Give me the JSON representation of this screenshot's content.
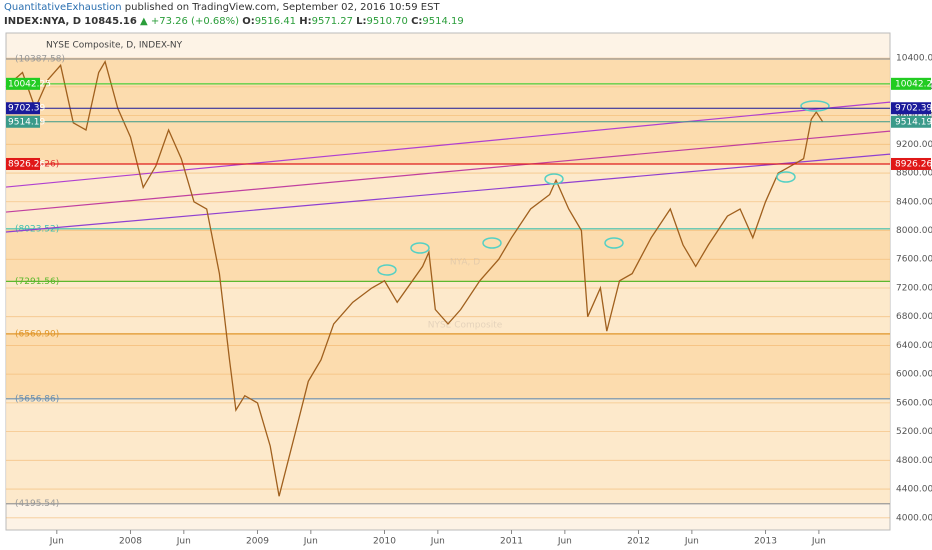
{
  "header": {
    "user": "QuantitativeExhaustion",
    "published": "published on TradingView.com, September 02, 2016 10:59 EST",
    "symbol": "INDEX:NYA, D",
    "last": "10845.16",
    "change": "▲ +73.26 (+0.68%)",
    "open_label": "O:",
    "open": "9516.41",
    "high_label": "H:",
    "high": "9571.27",
    "low_label": "L:",
    "low": "9510.70",
    "close_label": "C:",
    "close": "9514.19"
  },
  "chart_data": {
    "type": "line",
    "title": "NYSE Composite, D, INDEX-NY",
    "watermark": "NYA, D",
    "watermark_sub": "NYSE Composite",
    "color": "#a0601e",
    "x": [
      2007.02,
      2007.15,
      2007.25,
      2007.35,
      2007.45,
      2007.55,
      2007.65,
      2007.75,
      2007.8,
      2007.9,
      2008.0,
      2008.1,
      2008.2,
      2008.3,
      2008.4,
      2008.5,
      2008.6,
      2008.7,
      2008.78,
      2008.83,
      2008.9,
      2009.0,
      2009.1,
      2009.17,
      2009.3,
      2009.4,
      2009.5,
      2009.6,
      2009.75,
      2009.9,
      2010.0,
      2010.1,
      2010.3,
      2010.35,
      2010.4,
      2010.5,
      2010.6,
      2010.75,
      2010.9,
      2011.0,
      2011.15,
      2011.3,
      2011.35,
      2011.45,
      2011.55,
      2011.6,
      2011.7,
      2011.75,
      2011.85,
      2011.95,
      2012.1,
      2012.25,
      2012.35,
      2012.45,
      2012.55,
      2012.7,
      2012.8,
      2012.9,
      2013.0,
      2013.1,
      2013.2,
      2013.3,
      2013.36,
      2013.4,
      2013.45
    ],
    "values": [
      10000,
      10200,
      9700,
      10100,
      10300,
      9500,
      9400,
      10200,
      10350,
      9700,
      9300,
      8600,
      8900,
      9400,
      9000,
      8400,
      8300,
      7400,
      6200,
      5500,
      5700,
      5600,
      5000,
      4300,
      5200,
      5900,
      6200,
      6700,
      7000,
      7200,
      7300,
      7000,
      7500,
      7700,
      6900,
      6700,
      6900,
      7300,
      7600,
      7900,
      8300,
      8500,
      8700,
      8300,
      8000,
      6800,
      7200,
      6600,
      7300,
      7400,
      7900,
      8300,
      7800,
      7500,
      7800,
      8200,
      8300,
      7900,
      8400,
      8800,
      8900,
      9000,
      9550,
      9650,
      9514.19
    ],
    "xlim": [
      2007.02,
      2013.98
    ],
    "ylim": [
      3830,
      10750
    ],
    "xticks": [
      {
        "value": 2007.42,
        "label": "Jun"
      },
      {
        "value": 2008,
        "label": "2008"
      },
      {
        "value": 2008.42,
        "label": "Jun"
      },
      {
        "value": 2009,
        "label": "2009"
      },
      {
        "value": 2009.42,
        "label": "Jun"
      },
      {
        "value": 2010,
        "label": "2010"
      },
      {
        "value": 2010.42,
        "label": "Jun"
      },
      {
        "value": 2011,
        "label": "2011"
      },
      {
        "value": 2011.42,
        "label": "Jun"
      },
      {
        "value": 2012,
        "label": "2012"
      },
      {
        "value": 2012.42,
        "label": "Jun"
      },
      {
        "value": 2013,
        "label": "2013"
      },
      {
        "value": 2013.42,
        "label": "Jun"
      }
    ],
    "yticks": [
      {
        "value": 4000,
        "label": "4000.00"
      },
      {
        "value": 4400,
        "label": "4400.00"
      },
      {
        "value": 4800,
        "label": "4800.00"
      },
      {
        "value": 5200,
        "label": "5200.00"
      },
      {
        "value": 5600,
        "label": "5600.00"
      },
      {
        "value": 6000,
        "label": "6000.00"
      },
      {
        "value": 6400,
        "label": "6400.00"
      },
      {
        "value": 6800,
        "label": "6800.00"
      },
      {
        "value": 7200,
        "label": "7200.00"
      },
      {
        "value": 7600,
        "label": "7600.00"
      },
      {
        "value": 8000,
        "label": "8000.00"
      },
      {
        "value": 8400,
        "label": "8400.00"
      },
      {
        "value": 8800,
        "label": "8800.00"
      },
      {
        "value": 9200,
        "label": "9200.00"
      },
      {
        "value": 9600,
        "label": "9600.00"
      },
      {
        "value": 10000,
        "label": "10000.00"
      },
      {
        "value": 10400,
        "label": "10400.00"
      }
    ],
    "levels": [
      {
        "value": 10387.58,
        "label": "(10387.58)",
        "color": "#999999"
      },
      {
        "value": 8926.26,
        "label": "(8926.26)",
        "color": "#e03030"
      },
      {
        "value": 8023.52,
        "label": "(8023.52)",
        "color": "#3fbfb0"
      },
      {
        "value": 7291.56,
        "label": "(7291.56)",
        "color": "#5cb82e"
      },
      {
        "value": 6560.9,
        "label": "(6560.90)",
        "color": "#e0962a"
      },
      {
        "value": 5656.86,
        "label": "(5656.86)",
        "color": "#6a8fb0"
      },
      {
        "value": 4195.54,
        "label": "(4195.54)",
        "color": "#999999"
      }
    ],
    "price_markers": [
      {
        "value": 10042.25,
        "label": "10042.25",
        "color": "#22cc22"
      },
      {
        "value": 9702.39,
        "label": "9702.39",
        "color": "#1a1a9a"
      },
      {
        "value": 9514.19,
        "label": "9514.19",
        "color": "#3a9a8a"
      },
      {
        "value": 8926.26,
        "label": "8926.26",
        "color": "#e01818"
      }
    ],
    "trendlines": [
      {
        "x": [
          2007.02,
          2013.98
        ],
        "y": [
          8605,
          9788
        ],
        "color": "#b040d0"
      },
      {
        "x": [
          2007.02,
          2013.98
        ],
        "y": [
          8257,
          9384
        ],
        "color": "#c040a0"
      },
      {
        "x": [
          2007.02,
          2013.98
        ],
        "y": [
          7979,
          9064
        ],
        "color": "#9040d0"
      }
    ]
  }
}
